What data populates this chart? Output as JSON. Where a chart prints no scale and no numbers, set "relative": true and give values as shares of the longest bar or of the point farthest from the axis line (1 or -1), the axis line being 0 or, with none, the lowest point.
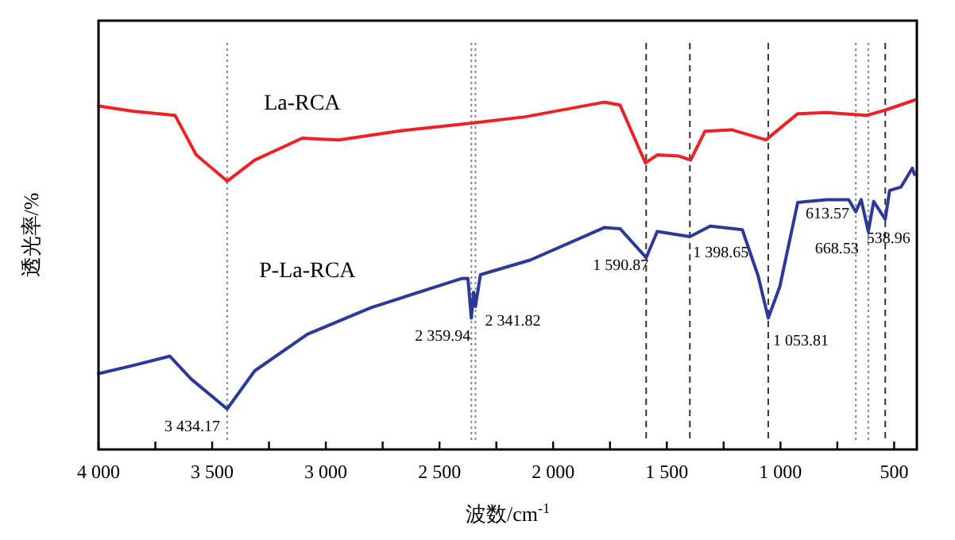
{
  "chart_data": {
    "type": "line",
    "relative": true,
    "xlabel": "波数/cm$^{-1}$",
    "ylabel": "透光率/%",
    "xlim": [
      4000,
      400
    ],
    "xticks": [
      {
        "value": 4000,
        "label": "4 000"
      },
      {
        "value": 3750,
        "label": null
      },
      {
        "value": 3500,
        "label": "3 500"
      },
      {
        "value": 3250,
        "label": null
      },
      {
        "value": 3000,
        "label": "3 000"
      },
      {
        "value": 2750,
        "label": null
      },
      {
        "value": 2500,
        "label": "2 500"
      },
      {
        "value": 2250,
        "label": null
      },
      {
        "value": 2000,
        "label": "2 000"
      },
      {
        "value": 1750,
        "label": null
      },
      {
        "value": 1500,
        "label": "1 500"
      },
      {
        "value": 1250,
        "label": null
      },
      {
        "value": 1000,
        "label": "1 000"
      },
      {
        "value": 750,
        "label": null
      },
      {
        "value": 500,
        "label": "500"
      }
    ],
    "tick_labels": "x",
    "marker": "none",
    "line_style": "solid",
    "series": [
      {
        "name": "La-RCA",
        "color": "#ee2222",
        "x": [
          4000,
          3850,
          3663,
          3570,
          3434,
          3313,
          3104,
          2943,
          2684,
          2357,
          2124,
          1775,
          1706,
          1594,
          1542,
          1448,
          1395,
          1332,
          1215,
          1064,
          924,
          797,
          622,
          540,
          410
        ],
        "values": [
          0.983,
          0.968,
          0.956,
          0.843,
          0.768,
          0.828,
          0.891,
          0.886,
          0.911,
          0.934,
          0.952,
          0.994,
          0.986,
          0.82,
          0.843,
          0.84,
          0.828,
          0.911,
          0.915,
          0.886,
          0.961,
          0.964,
          0.956,
          0.971,
          1.0
        ]
      },
      {
        "name": "P-La-RCA",
        "color": "#2b3a9a",
        "x": [
          4000,
          3850,
          3686,
          3593,
          3434.17,
          3313,
          3081,
          2801,
          2404,
          2375,
          2359.94,
          2350,
          2341.82,
          2320,
          2300,
          2101,
          1775,
          1706,
          1590.87,
          1542,
          1398.65,
          1309,
          1168,
          1098,
          1053.81,
          1003,
          924,
          797,
          700,
          668.53,
          645,
          613.57,
          590,
          538.96,
          520,
          470,
          420,
          410
        ],
        "values": [
          0.217,
          0.24,
          0.267,
          0.202,
          0.116,
          0.225,
          0.33,
          0.406,
          0.489,
          0.49,
          0.376,
          0.45,
          0.409,
          0.5,
          0.504,
          0.542,
          0.635,
          0.632,
          0.549,
          0.624,
          0.609,
          0.639,
          0.629,
          0.496,
          0.376,
          0.466,
          0.707,
          0.715,
          0.715,
          0.68,
          0.715,
          0.624,
          0.71,
          0.659,
          0.741,
          0.751,
          0.805,
          0.787
        ]
      }
    ],
    "annotations": [
      {
        "text": "3 434.17",
        "x": 3434.17,
        "y": 0.116
      },
      {
        "text": "2 359.94",
        "x": 2359.94,
        "y": 0.376
      },
      {
        "text": "2 341.82",
        "x": 2341.82,
        "y": 0.409
      },
      {
        "text": "1 590.87",
        "x": 1590.87,
        "y": 0.549
      },
      {
        "text": "1 398.65",
        "x": 1398.65,
        "y": 0.609
      },
      {
        "text": "1 053.81",
        "x": 1053.81,
        "y": 0.376
      },
      {
        "text": "668.53",
        "x": 668.53,
        "y": 0.68
      },
      {
        "text": "613.57",
        "x": 613.57,
        "y": 0.624
      },
      {
        "text": "538.96",
        "x": 538.96,
        "y": 0.659
      }
    ],
    "ref_lines": [
      {
        "axis": "x",
        "value": 3434.17,
        "color": "#888888",
        "line_style": "dotted"
      },
      {
        "axis": "x",
        "value": 2359.94,
        "color": "#888888",
        "line_style": "dotted"
      },
      {
        "axis": "x",
        "value": 2341.82,
        "color": "#888888",
        "line_style": "dotted"
      },
      {
        "axis": "x",
        "value": 1590.87,
        "color": "#333333",
        "line_style": "dashed"
      },
      {
        "axis": "x",
        "value": 1398.65,
        "color": "#333333",
        "line_style": "dashed"
      },
      {
        "axis": "x",
        "value": 1053.81,
        "color": "#333333",
        "line_style": "dashed"
      },
      {
        "axis": "x",
        "value": 668.53,
        "color": "#888888",
        "line_style": "dotted"
      },
      {
        "axis": "x",
        "value": 613.57,
        "color": "#888888",
        "line_style": "dotted"
      },
      {
        "axis": "x",
        "value": 538.96,
        "color": "#333333",
        "line_style": "dashed"
      }
    ]
  }
}
